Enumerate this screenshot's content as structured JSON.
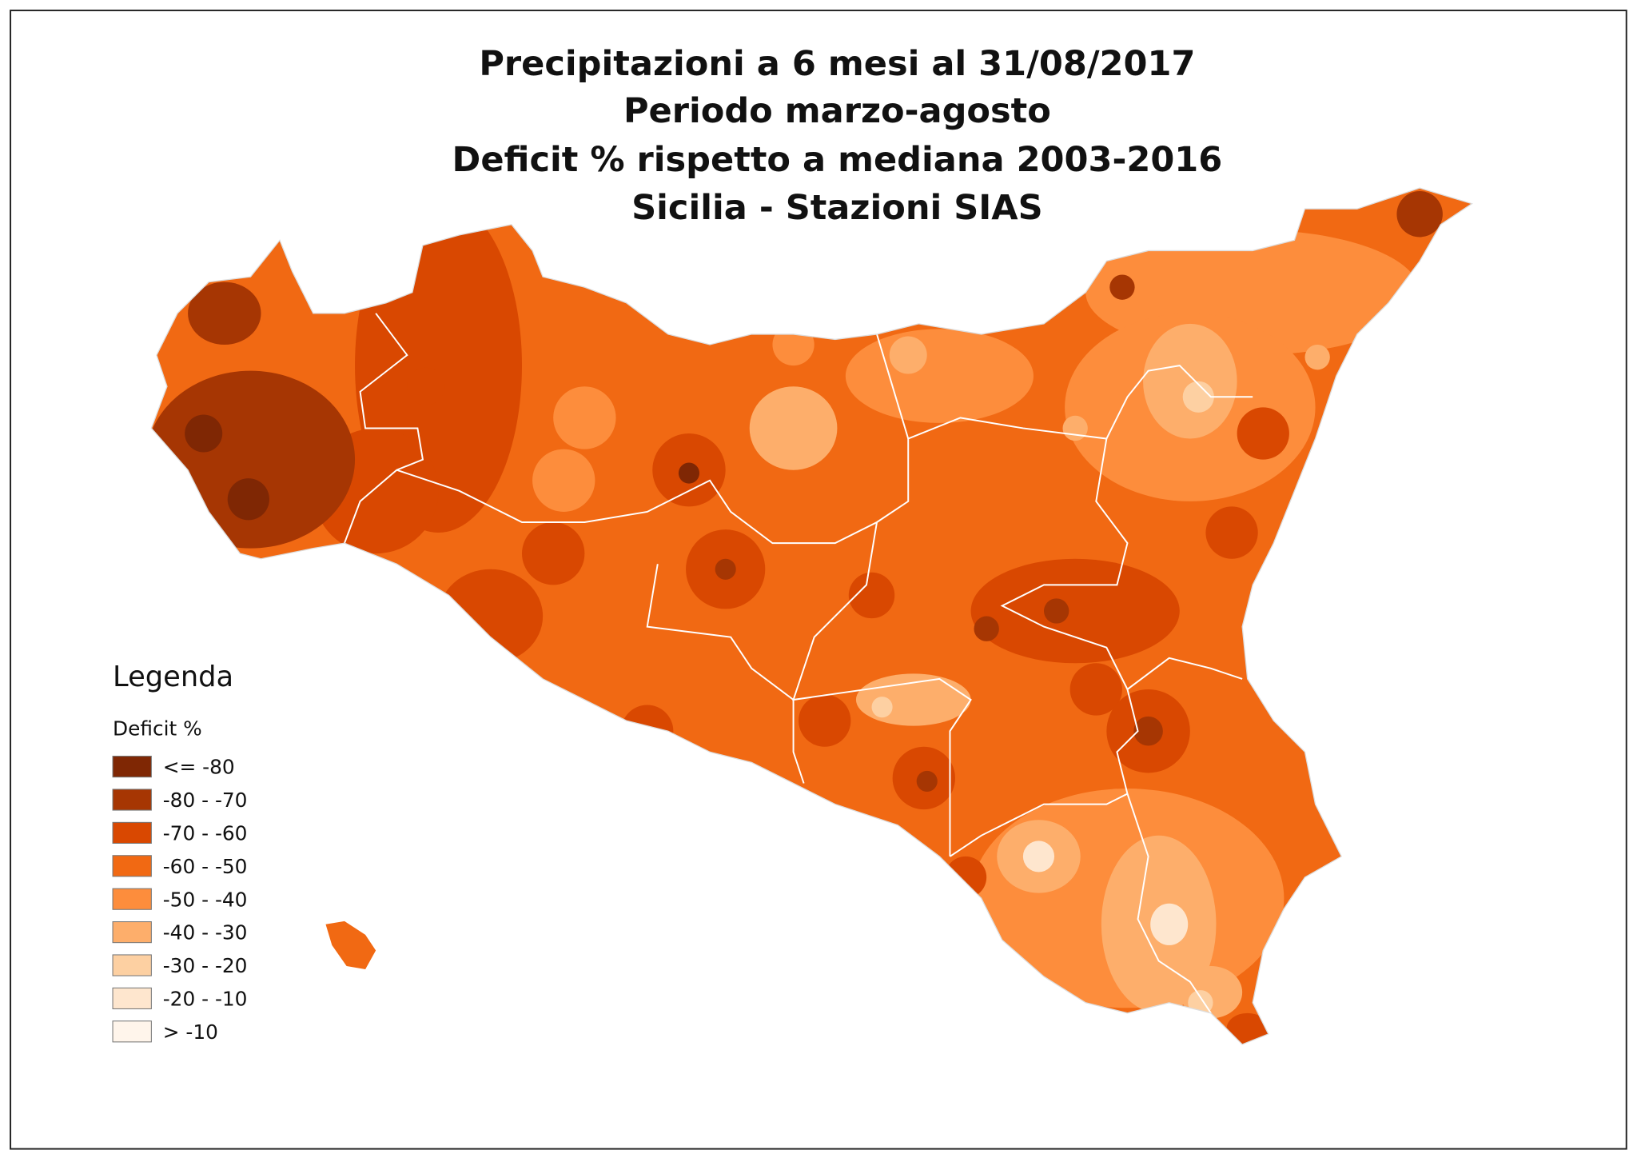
{
  "title_lines": [
    "Precipitazioni a 6 mesi al 31/08/2017",
    "Periodo marzo-agosto",
    "Deficit % rispetto a mediana 2003-2016",
    "Sicilia - Stazioni SIAS"
  ],
  "legend": {
    "title": "Legenda",
    "subtitle": "Deficit %",
    "items": [
      {
        "label": "<= -80",
        "color": "#7f2704"
      },
      {
        "label": "-80 - -70",
        "color": "#a63603"
      },
      {
        "label": "-70 - -60",
        "color": "#d94801"
      },
      {
        "label": "-60 - -50",
        "color": "#f16913"
      },
      {
        "label": "-50 - -40",
        "color": "#fd8d3c"
      },
      {
        "label": "-40 - -30",
        "color": "#fdae6b"
      },
      {
        "label": "-30 - -20",
        "color": "#fdd0a2"
      },
      {
        "label": "-20 - -10",
        "color": "#fee6ce"
      },
      {
        "label": "> -10",
        "color": "#fff5eb"
      }
    ]
  }
}
